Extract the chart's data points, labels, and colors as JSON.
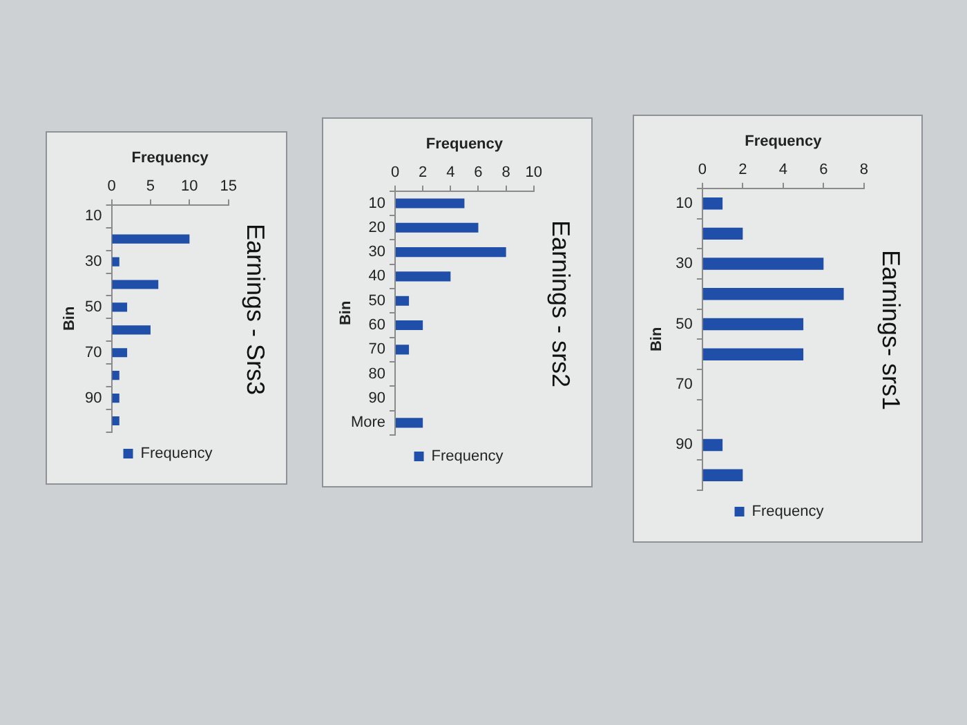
{
  "chart_data": [
    {
      "type": "bar",
      "orientation": "horizontal",
      "title": "Earnings- srs1",
      "xlabel": "Frequency",
      "ylabel": "Bin",
      "categories": [
        "10",
        null,
        "30",
        null,
        "50",
        null,
        "70",
        null,
        "90",
        null
      ],
      "series": [
        {
          "name": "Frequency",
          "color": "#1f4fa8",
          "values": [
            1,
            2,
            6,
            7,
            5,
            5,
            0,
            0,
            1,
            2
          ]
        }
      ],
      "xlim": [
        0,
        8
      ],
      "xticks": [
        0,
        2,
        4,
        6,
        8
      ],
      "legend": "bottom"
    },
    {
      "type": "bar",
      "orientation": "horizontal",
      "title": "Earnings - srs2",
      "xlabel": "Frequency",
      "ylabel": "Bin",
      "categories": [
        "10",
        "20",
        "30",
        "40",
        "50",
        "60",
        "70",
        "80",
        "90",
        "More"
      ],
      "series": [
        {
          "name": "Frequency",
          "color": "#1f4fa8",
          "values": [
            5,
            6,
            8,
            4,
            1,
            2,
            1,
            0,
            0,
            2
          ]
        }
      ],
      "xlim": [
        0,
        10
      ],
      "xticks": [
        0,
        2,
        4,
        6,
        8,
        10
      ],
      "legend": "bottom"
    },
    {
      "type": "bar",
      "orientation": "horizontal",
      "title": "Earnings - Srs3",
      "xlabel": "Frequency",
      "ylabel": "Bin",
      "categories": [
        "10",
        null,
        "30",
        null,
        "50",
        null,
        "70",
        null,
        "90",
        null
      ],
      "series": [
        {
          "name": "Frequency",
          "color": "#1f4fa8",
          "values": [
            0,
            10,
            1,
            6,
            2,
            5,
            2,
            1,
            1,
            1
          ]
        }
      ],
      "xlim": [
        0,
        15
      ],
      "xticks": [
        0,
        5,
        10,
        15
      ],
      "legend": "bottom"
    }
  ]
}
